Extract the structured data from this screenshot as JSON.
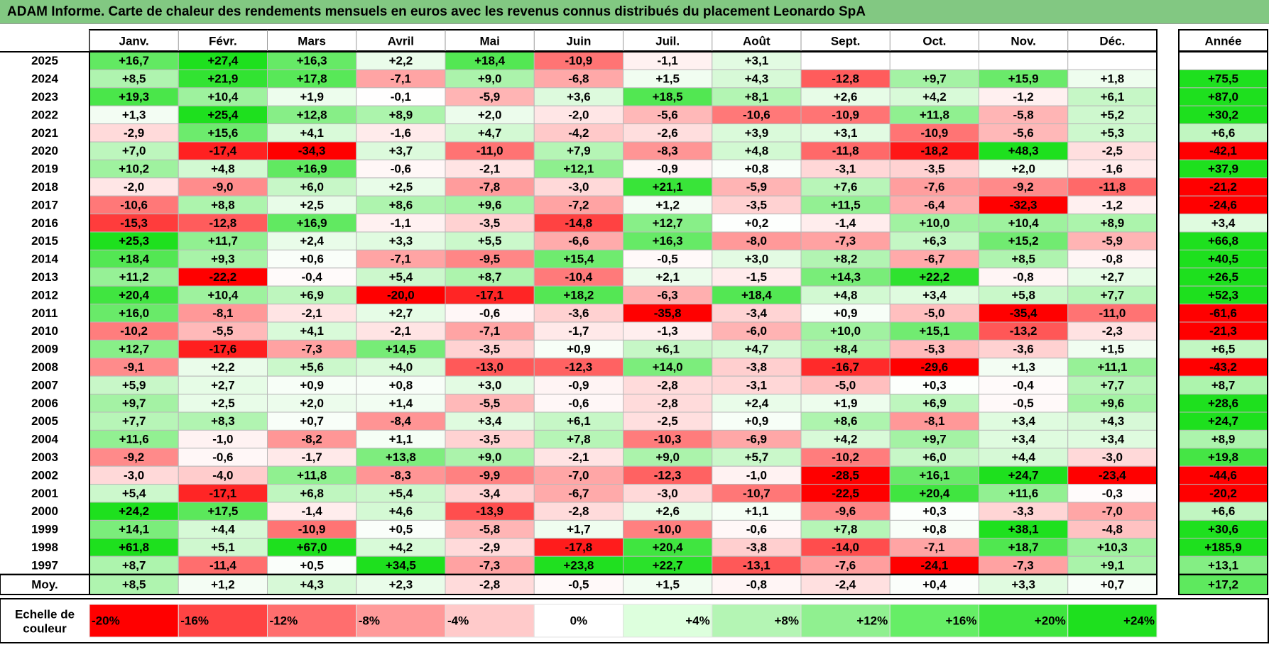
{
  "title": "ADAM Informe. Carte de chaleur des rendements mensuels en euros avec les revenus connus distribués du placement Leonardo SpA",
  "chart_data": {
    "type": "heatmap",
    "columns": [
      "Janv.",
      "Févr.",
      "Mars",
      "Avril",
      "Mai",
      "Juin",
      "Juil.",
      "Août",
      "Sept.",
      "Oct.",
      "Nov.",
      "Déc."
    ],
    "year_column_label": "Année",
    "rows": [
      {
        "year": "2025",
        "values": [
          "+16,7",
          "+27,4",
          "+16,3",
          "+2,2",
          "+18,4",
          "-10,9",
          "-1,1",
          "+3,1",
          "",
          "",
          "",
          ""
        ],
        "annual": ""
      },
      {
        "year": "2024",
        "values": [
          "+8,5",
          "+21,9",
          "+17,8",
          "-7,1",
          "+9,0",
          "-6,8",
          "+1,5",
          "+4,3",
          "-12,8",
          "+9,7",
          "+15,9",
          "+1,8"
        ],
        "annual": "+75,5"
      },
      {
        "year": "2023",
        "values": [
          "+19,3",
          "+10,4",
          "+1,9",
          "-0,1",
          "-5,9",
          "+3,6",
          "+18,5",
          "+8,1",
          "+2,6",
          "+4,2",
          "-1,2",
          "+6,1"
        ],
        "annual": "+87,0"
      },
      {
        "year": "2022",
        "values": [
          "+1,3",
          "+25,4",
          "+12,8",
          "+8,9",
          "+2,0",
          "-2,0",
          "-5,6",
          "-10,6",
          "-10,9",
          "+11,8",
          "-5,8",
          "+5,2"
        ],
        "annual": "+30,2"
      },
      {
        "year": "2021",
        "values": [
          "-2,9",
          "+15,6",
          "+4,1",
          "-1,6",
          "+4,7",
          "-4,2",
          "-2,6",
          "+3,9",
          "+3,1",
          "-10,9",
          "-5,6",
          "+5,3"
        ],
        "annual": "+6,6"
      },
      {
        "year": "2020",
        "values": [
          "+7,0",
          "-17,4",
          "-34,3",
          "+3,7",
          "-11,0",
          "+7,9",
          "-8,3",
          "+4,8",
          "-11,8",
          "-18,2",
          "+48,3",
          "-2,5"
        ],
        "annual": "-42,1"
      },
      {
        "year": "2019",
        "values": [
          "+10,2",
          "+4,8",
          "+16,9",
          "-0,6",
          "-2,1",
          "+12,1",
          "-0,9",
          "+0,8",
          "-3,1",
          "-3,5",
          "+2,0",
          "-1,6"
        ],
        "annual": "+37,9"
      },
      {
        "year": "2018",
        "values": [
          "-2,0",
          "-9,0",
          "+6,0",
          "+2,5",
          "-7,8",
          "-3,0",
          "+21,1",
          "-5,9",
          "+7,6",
          "-7,6",
          "-9,2",
          "-11,8"
        ],
        "annual": "-21,2"
      },
      {
        "year": "2017",
        "values": [
          "-10,6",
          "+8,8",
          "+2,5",
          "+8,6",
          "+9,6",
          "-7,2",
          "+1,2",
          "-3,5",
          "+11,5",
          "-6,4",
          "-32,3",
          "-1,2"
        ],
        "annual": "-24,6"
      },
      {
        "year": "2016",
        "values": [
          "-15,3",
          "-12,8",
          "+16,9",
          "-1,1",
          "-3,5",
          "-14,8",
          "+12,7",
          "+0,2",
          "-1,4",
          "+10,0",
          "+10,4",
          "+8,9"
        ],
        "annual": "+3,4"
      },
      {
        "year": "2015",
        "values": [
          "+25,3",
          "+11,7",
          "+2,4",
          "+3,3",
          "+5,5",
          "-6,6",
          "+16,3",
          "-8,0",
          "-7,3",
          "+6,3",
          "+15,2",
          "-5,9"
        ],
        "annual": "+66,8"
      },
      {
        "year": "2014",
        "values": [
          "+18,4",
          "+9,3",
          "+0,6",
          "-7,1",
          "-9,5",
          "+15,4",
          "-0,5",
          "+3,0",
          "+8,2",
          "-6,7",
          "+8,5",
          "-0,8"
        ],
        "annual": "+40,5"
      },
      {
        "year": "2013",
        "values": [
          "+11,2",
          "-22,2",
          "-0,4",
          "+5,4",
          "+8,7",
          "-10,4",
          "+2,1",
          "-1,5",
          "+14,3",
          "+22,2",
          "-0,8",
          "+2,7"
        ],
        "annual": "+26,5"
      },
      {
        "year": "2012",
        "values": [
          "+20,4",
          "+10,4",
          "+6,9",
          "-20,0",
          "-17,1",
          "+18,2",
          "-6,3",
          "+18,4",
          "+4,8",
          "+3,4",
          "+5,8",
          "+7,7"
        ],
        "annual": "+52,3"
      },
      {
        "year": "2011",
        "values": [
          "+16,0",
          "-8,1",
          "-2,1",
          "+2,7",
          "-0,6",
          "-3,6",
          "-35,8",
          "-3,4",
          "+0,9",
          "-5,0",
          "-35,4",
          "-11,0"
        ],
        "annual": "-61,6"
      },
      {
        "year": "2010",
        "values": [
          "-10,2",
          "-5,5",
          "+4,1",
          "-2,1",
          "-7,1",
          "-1,7",
          "-1,3",
          "-6,0",
          "+10,0",
          "+15,1",
          "-13,2",
          "-2,3"
        ],
        "annual": "-21,3"
      },
      {
        "year": "2009",
        "values": [
          "+12,7",
          "-17,6",
          "-7,3",
          "+14,5",
          "-3,5",
          "+0,9",
          "+6,1",
          "+4,7",
          "+8,4",
          "-5,3",
          "-3,6",
          "+1,5"
        ],
        "annual": "+6,5"
      },
      {
        "year": "2008",
        "values": [
          "-9,1",
          "+2,2",
          "+5,6",
          "+4,0",
          "-13,0",
          "-12,3",
          "+14,0",
          "-3,8",
          "-16,7",
          "-29,6",
          "+1,3",
          "+11,1"
        ],
        "annual": "-43,2"
      },
      {
        "year": "2007",
        "values": [
          "+5,9",
          "+2,7",
          "+0,9",
          "+0,8",
          "+3,0",
          "-0,9",
          "-2,8",
          "-3,1",
          "-5,0",
          "+0,3",
          "-0,4",
          "+7,7"
        ],
        "annual": "+8,7"
      },
      {
        "year": "2006",
        "values": [
          "+9,7",
          "+2,5",
          "+2,0",
          "+1,4",
          "-5,5",
          "-0,6",
          "-2,8",
          "+2,4",
          "+1,9",
          "+6,9",
          "-0,5",
          "+9,6"
        ],
        "annual": "+28,6"
      },
      {
        "year": "2005",
        "values": [
          "+7,7",
          "+8,3",
          "+0,7",
          "-8,4",
          "+3,4",
          "+6,1",
          "-2,5",
          "+0,9",
          "+8,6",
          "-8,1",
          "+3,4",
          "+4,3"
        ],
        "annual": "+24,7"
      },
      {
        "year": "2004",
        "values": [
          "+11,6",
          "-1,0",
          "-8,2",
          "+1,1",
          "-3,5",
          "+7,8",
          "-10,3",
          "-6,9",
          "+4,2",
          "+9,7",
          "+3,4",
          "+3,4"
        ],
        "annual": "+8,9"
      },
      {
        "year": "2003",
        "values": [
          "-9,2",
          "-0,6",
          "-1,7",
          "+13,8",
          "+9,0",
          "-2,1",
          "+9,0",
          "+5,7",
          "-10,2",
          "+6,0",
          "+4,4",
          "-3,0"
        ],
        "annual": "+19,8"
      },
      {
        "year": "2002",
        "values": [
          "-3,0",
          "-4,0",
          "+11,8",
          "-8,3",
          "-9,9",
          "-7,0",
          "-12,3",
          "-1,0",
          "-28,5",
          "+16,1",
          "+24,7",
          "-23,4"
        ],
        "annual": "-44,6"
      },
      {
        "year": "2001",
        "values": [
          "+5,4",
          "-17,1",
          "+6,8",
          "+5,4",
          "-3,4",
          "-6,7",
          "-3,0",
          "-10,7",
          "-22,5",
          "+20,4",
          "+11,6",
          "-0,3"
        ],
        "annual": "-20,2"
      },
      {
        "year": "2000",
        "values": [
          "+24,2",
          "+17,5",
          "-1,4",
          "+4,6",
          "-13,9",
          "-2,8",
          "+2,6",
          "+1,1",
          "-9,6",
          "+0,3",
          "-3,3",
          "-7,0"
        ],
        "annual": "+6,6"
      },
      {
        "year": "1999",
        "values": [
          "+14,1",
          "+4,4",
          "-10,9",
          "+0,5",
          "-5,8",
          "+1,7",
          "-10,0",
          "-0,6",
          "+7,8",
          "+0,8",
          "+38,1",
          "-4,8"
        ],
        "annual": "+30,6"
      },
      {
        "year": "1998",
        "values": [
          "+61,8",
          "+5,1",
          "+67,0",
          "+4,2",
          "-2,9",
          "-17,8",
          "+20,4",
          "-3,8",
          "-14,0",
          "-7,1",
          "+18,7",
          "+10,3"
        ],
        "annual": "+185,9"
      },
      {
        "year": "1997",
        "values": [
          "+8,7",
          "-11,4",
          "+0,5",
          "+34,5",
          "-7,3",
          "+23,8",
          "+22,7",
          "-13,1",
          "-7,6",
          "-24,1",
          "-7,3",
          "+9,1"
        ],
        "annual": "+13,1"
      }
    ],
    "average_row": {
      "label": "Moy.",
      "values": [
        "+8,5",
        "+1,2",
        "+4,3",
        "+2,3",
        "-2,8",
        "-0,5",
        "+1,5",
        "-0,8",
        "-2,4",
        "+0,4",
        "+3,3",
        "+0,7"
      ],
      "annual": "+17,2"
    },
    "scale": {
      "label_line1": "Echelle de",
      "label_line2": "couleur",
      "stops": [
        {
          "label": "-20%",
          "color": "#ff0000",
          "align": "left"
        },
        {
          "label": "-16%",
          "color": "#ff4444",
          "align": "left"
        },
        {
          "label": "-12%",
          "color": "#ff6e6e",
          "align": "left"
        },
        {
          "label": "-8%",
          "color": "#ff9a9a",
          "align": "left"
        },
        {
          "label": "-4%",
          "color": "#ffcaca",
          "align": "left"
        },
        {
          "label": "0%",
          "color": "#ffffff",
          "align": "center"
        },
        {
          "label": "+4%",
          "color": "#ddffdd",
          "align": "right"
        },
        {
          "label": "+8%",
          "color": "#b4f5b4",
          "align": "right"
        },
        {
          "label": "+12%",
          "color": "#90f090",
          "align": "right"
        },
        {
          "label": "+16%",
          "color": "#66ee66",
          "align": "right"
        },
        {
          "label": "+20%",
          "color": "#3fe63f",
          "align": "right"
        },
        {
          "label": "+24%",
          "color": "#1ee01e",
          "align": "right"
        }
      ]
    },
    "colors": {
      "title_bar": "#82c882",
      "negative_max": "#ff0000",
      "positive_max": "#1ee01e",
      "neutral": "#ffffff"
    }
  }
}
